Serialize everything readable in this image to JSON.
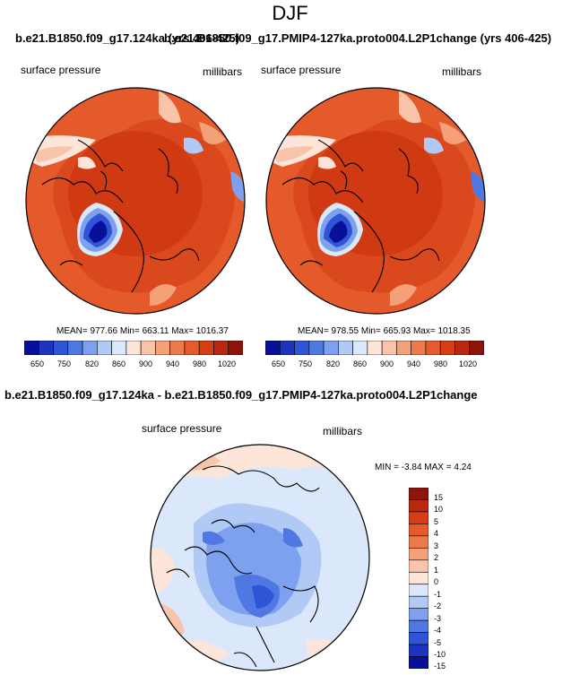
{
  "page": {
    "title": "DJF",
    "top_title_left": "b.e21.B1850.f09_g17.124ka (yrs 406-425)",
    "top_title_right": "b.e21.B1850.f09_g17.PMIP4-127ka.proto004.L2P1change (yrs 406-425)",
    "diff_title": "b.e21.B1850.f09_g17.124ka - b.e21.B1850.f09_g17.PMIP4-127ka.proto004.L2P1change"
  },
  "maps": [
    {
      "variable": "surface pressure",
      "units": "millibars",
      "stats": "MEAN= 977.66  Min= 663.11  Max= 1016.37"
    },
    {
      "variable": "surface pressure",
      "units": "millibars",
      "stats": "MEAN= 978.55  Min= 665.93  Max= 1018.35"
    }
  ],
  "colorbar_abs": {
    "labels": [
      "650",
      "750",
      "820",
      "860",
      "900",
      "940",
      "980",
      "1020"
    ],
    "colors": [
      "#08109a",
      "#1c34c0",
      "#2f55d6",
      "#5078e3",
      "#7ea1ef",
      "#b0caf5",
      "#dbe7fa",
      "#fde5d9",
      "#f9c5aa",
      "#f4a078",
      "#ee7a4c",
      "#e65a2c",
      "#d73e16",
      "#bb2810",
      "#8e130a"
    ]
  },
  "diff_map": {
    "variable": "surface pressure",
    "units": "millibars",
    "stats": "MIN =  -3.84 MAX =   4.24"
  },
  "colorbar_diff": {
    "labels": [
      "15",
      "10",
      "5",
      "4",
      "3",
      "2",
      "1",
      "0",
      "-1",
      "-2",
      "-3",
      "-4",
      "-5",
      "-10",
      "-15"
    ],
    "colors": [
      "#8e130a",
      "#bb2810",
      "#d73e16",
      "#e65a2c",
      "#ee7a4c",
      "#f4a078",
      "#f9c5aa",
      "#fde5d9",
      "#dbe7fa",
      "#b0caf5",
      "#7ea1ef",
      "#5078e3",
      "#2f55d6",
      "#1c34c0",
      "#08109a"
    ]
  }
}
